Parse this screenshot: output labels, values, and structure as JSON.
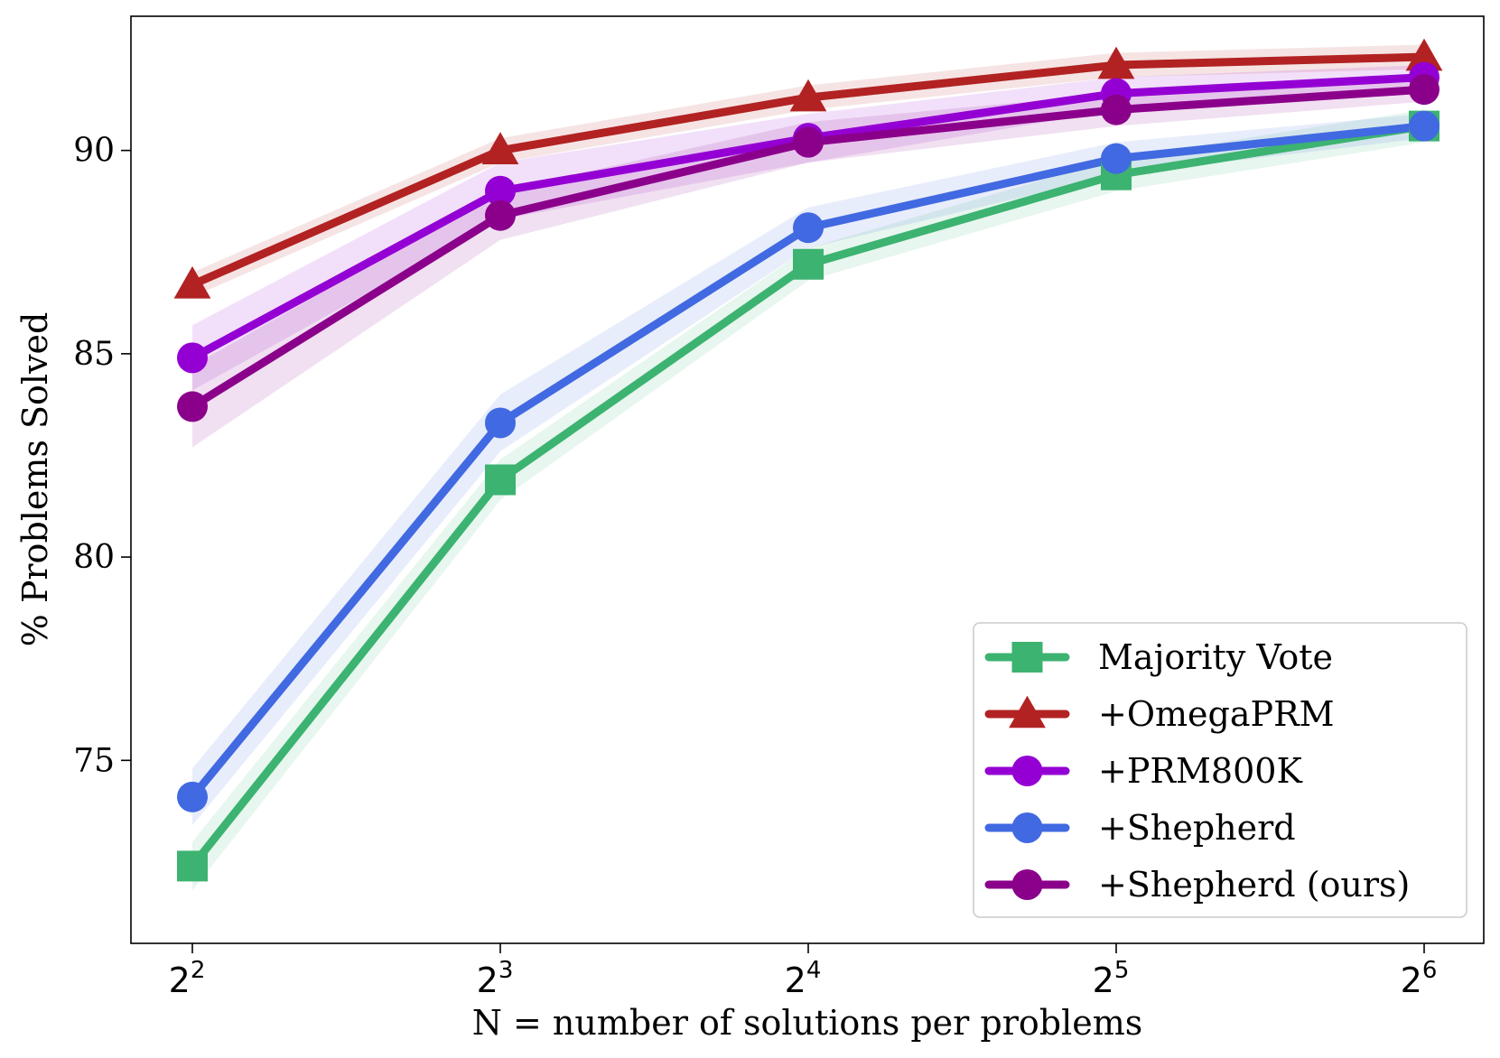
{
  "chart_data": {
    "type": "line",
    "title": "",
    "xlabel": "N = number of solutions per problems",
    "ylabel": "% Problems Solved",
    "x": [
      4,
      8,
      16,
      32,
      64
    ],
    "x_scale": "log2",
    "x_tick_labels": [
      {
        "base": "2",
        "exp": "2"
      },
      {
        "base": "2",
        "exp": "3"
      },
      {
        "base": "2",
        "exp": "4"
      },
      {
        "base": "2",
        "exp": "5"
      },
      {
        "base": "2",
        "exp": "6"
      }
    ],
    "yticks": [
      75,
      80,
      85,
      90
    ],
    "ylim": [
      70.5,
      93.3
    ],
    "grid": false,
    "legend_position": "lower-right",
    "series": [
      {
        "name": "Majority Vote",
        "color": "#3cb371",
        "marker": "square",
        "values": [
          72.4,
          81.9,
          87.2,
          89.4,
          90.6
        ],
        "band": [
          0.6,
          0.5,
          0.4,
          0.4,
          0.4
        ]
      },
      {
        "name": "+OmegaPRM",
        "color": "#b22222",
        "marker": "triangle",
        "values": [
          86.7,
          90.0,
          91.3,
          92.1,
          92.3
        ],
        "band": [
          0.3,
          0.3,
          0.3,
          0.3,
          0.3
        ]
      },
      {
        "name": "+PRM800K",
        "color": "#9400d3",
        "marker": "circle",
        "values": [
          84.9,
          89.0,
          90.3,
          91.4,
          91.8
        ],
        "band": [
          0.8,
          0.7,
          0.6,
          0.4,
          0.3
        ]
      },
      {
        "name": "+Shepherd",
        "color": "#4169e1",
        "marker": "circle",
        "values": [
          74.1,
          83.3,
          88.1,
          89.8,
          90.6
        ],
        "band": [
          0.7,
          0.7,
          0.5,
          0.4,
          0.3
        ]
      },
      {
        "name": "+Shepherd (ours)",
        "color": "#8b008b",
        "marker": "circle",
        "values": [
          83.7,
          88.4,
          90.2,
          91.0,
          91.5
        ],
        "band": [
          1.0,
          0.6,
          0.5,
          0.4,
          0.3
        ]
      }
    ]
  }
}
